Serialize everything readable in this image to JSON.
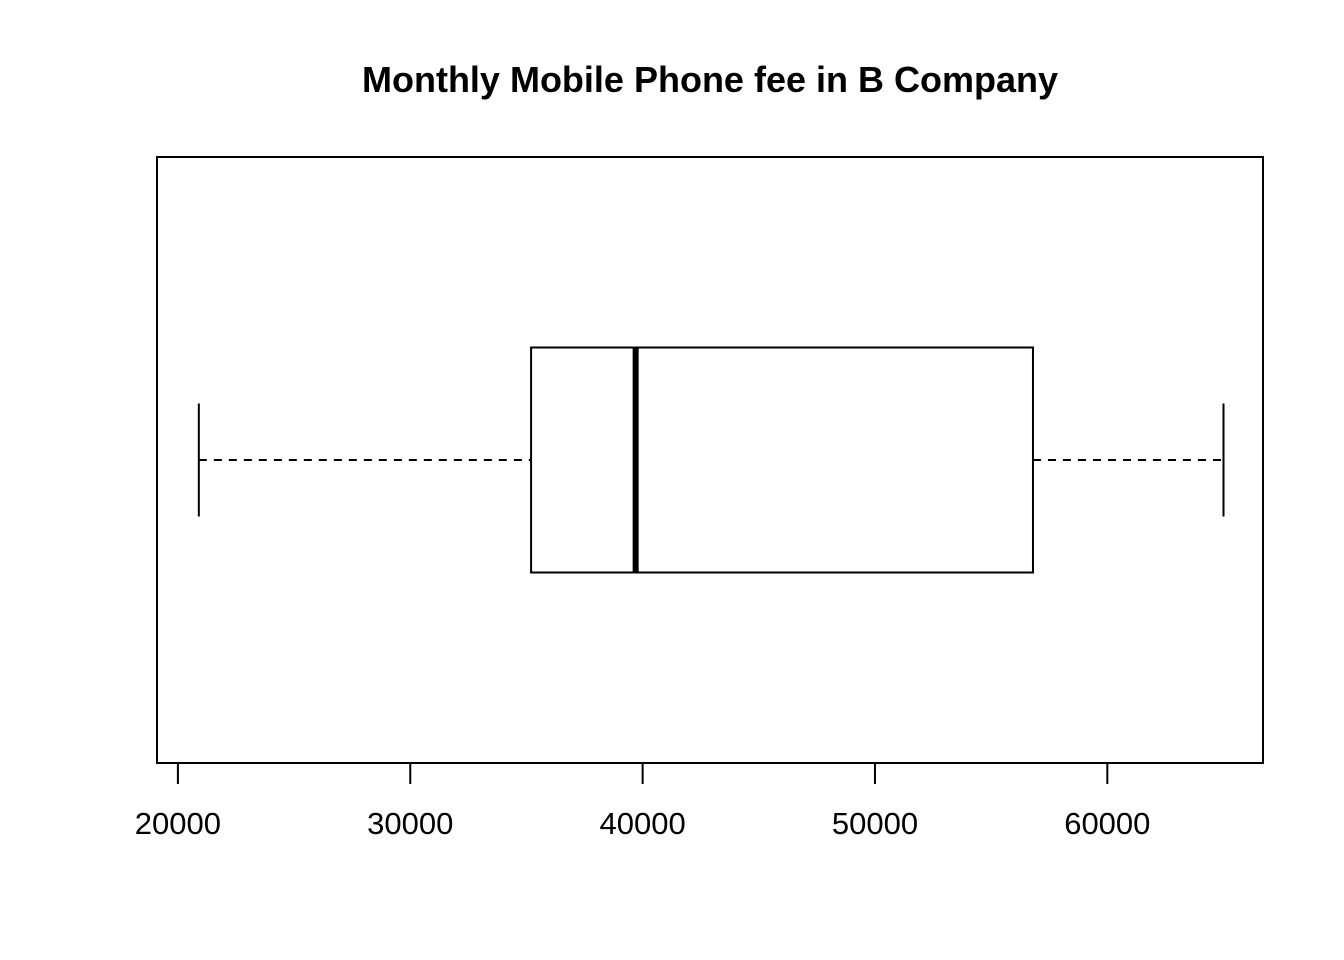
{
  "chart_data": {
    "type": "boxplot",
    "title": "Monthly Mobile Phone fee in B Company",
    "xlabel": "",
    "ylabel": "",
    "orientation": "horizontal",
    "xlim": [
      19100,
      66700
    ],
    "ticks": [
      20000,
      30000,
      40000,
      50000,
      60000
    ],
    "tick_labels": [
      "20000",
      "30000",
      "40000",
      "50000",
      "60000"
    ],
    "box": {
      "min": 20900,
      "q1": 35200,
      "median": 39700,
      "q3": 56800,
      "max": 65000
    },
    "grid": false,
    "legend": "none",
    "colors": {
      "stroke": "#000000",
      "background": "#ffffff"
    }
  }
}
